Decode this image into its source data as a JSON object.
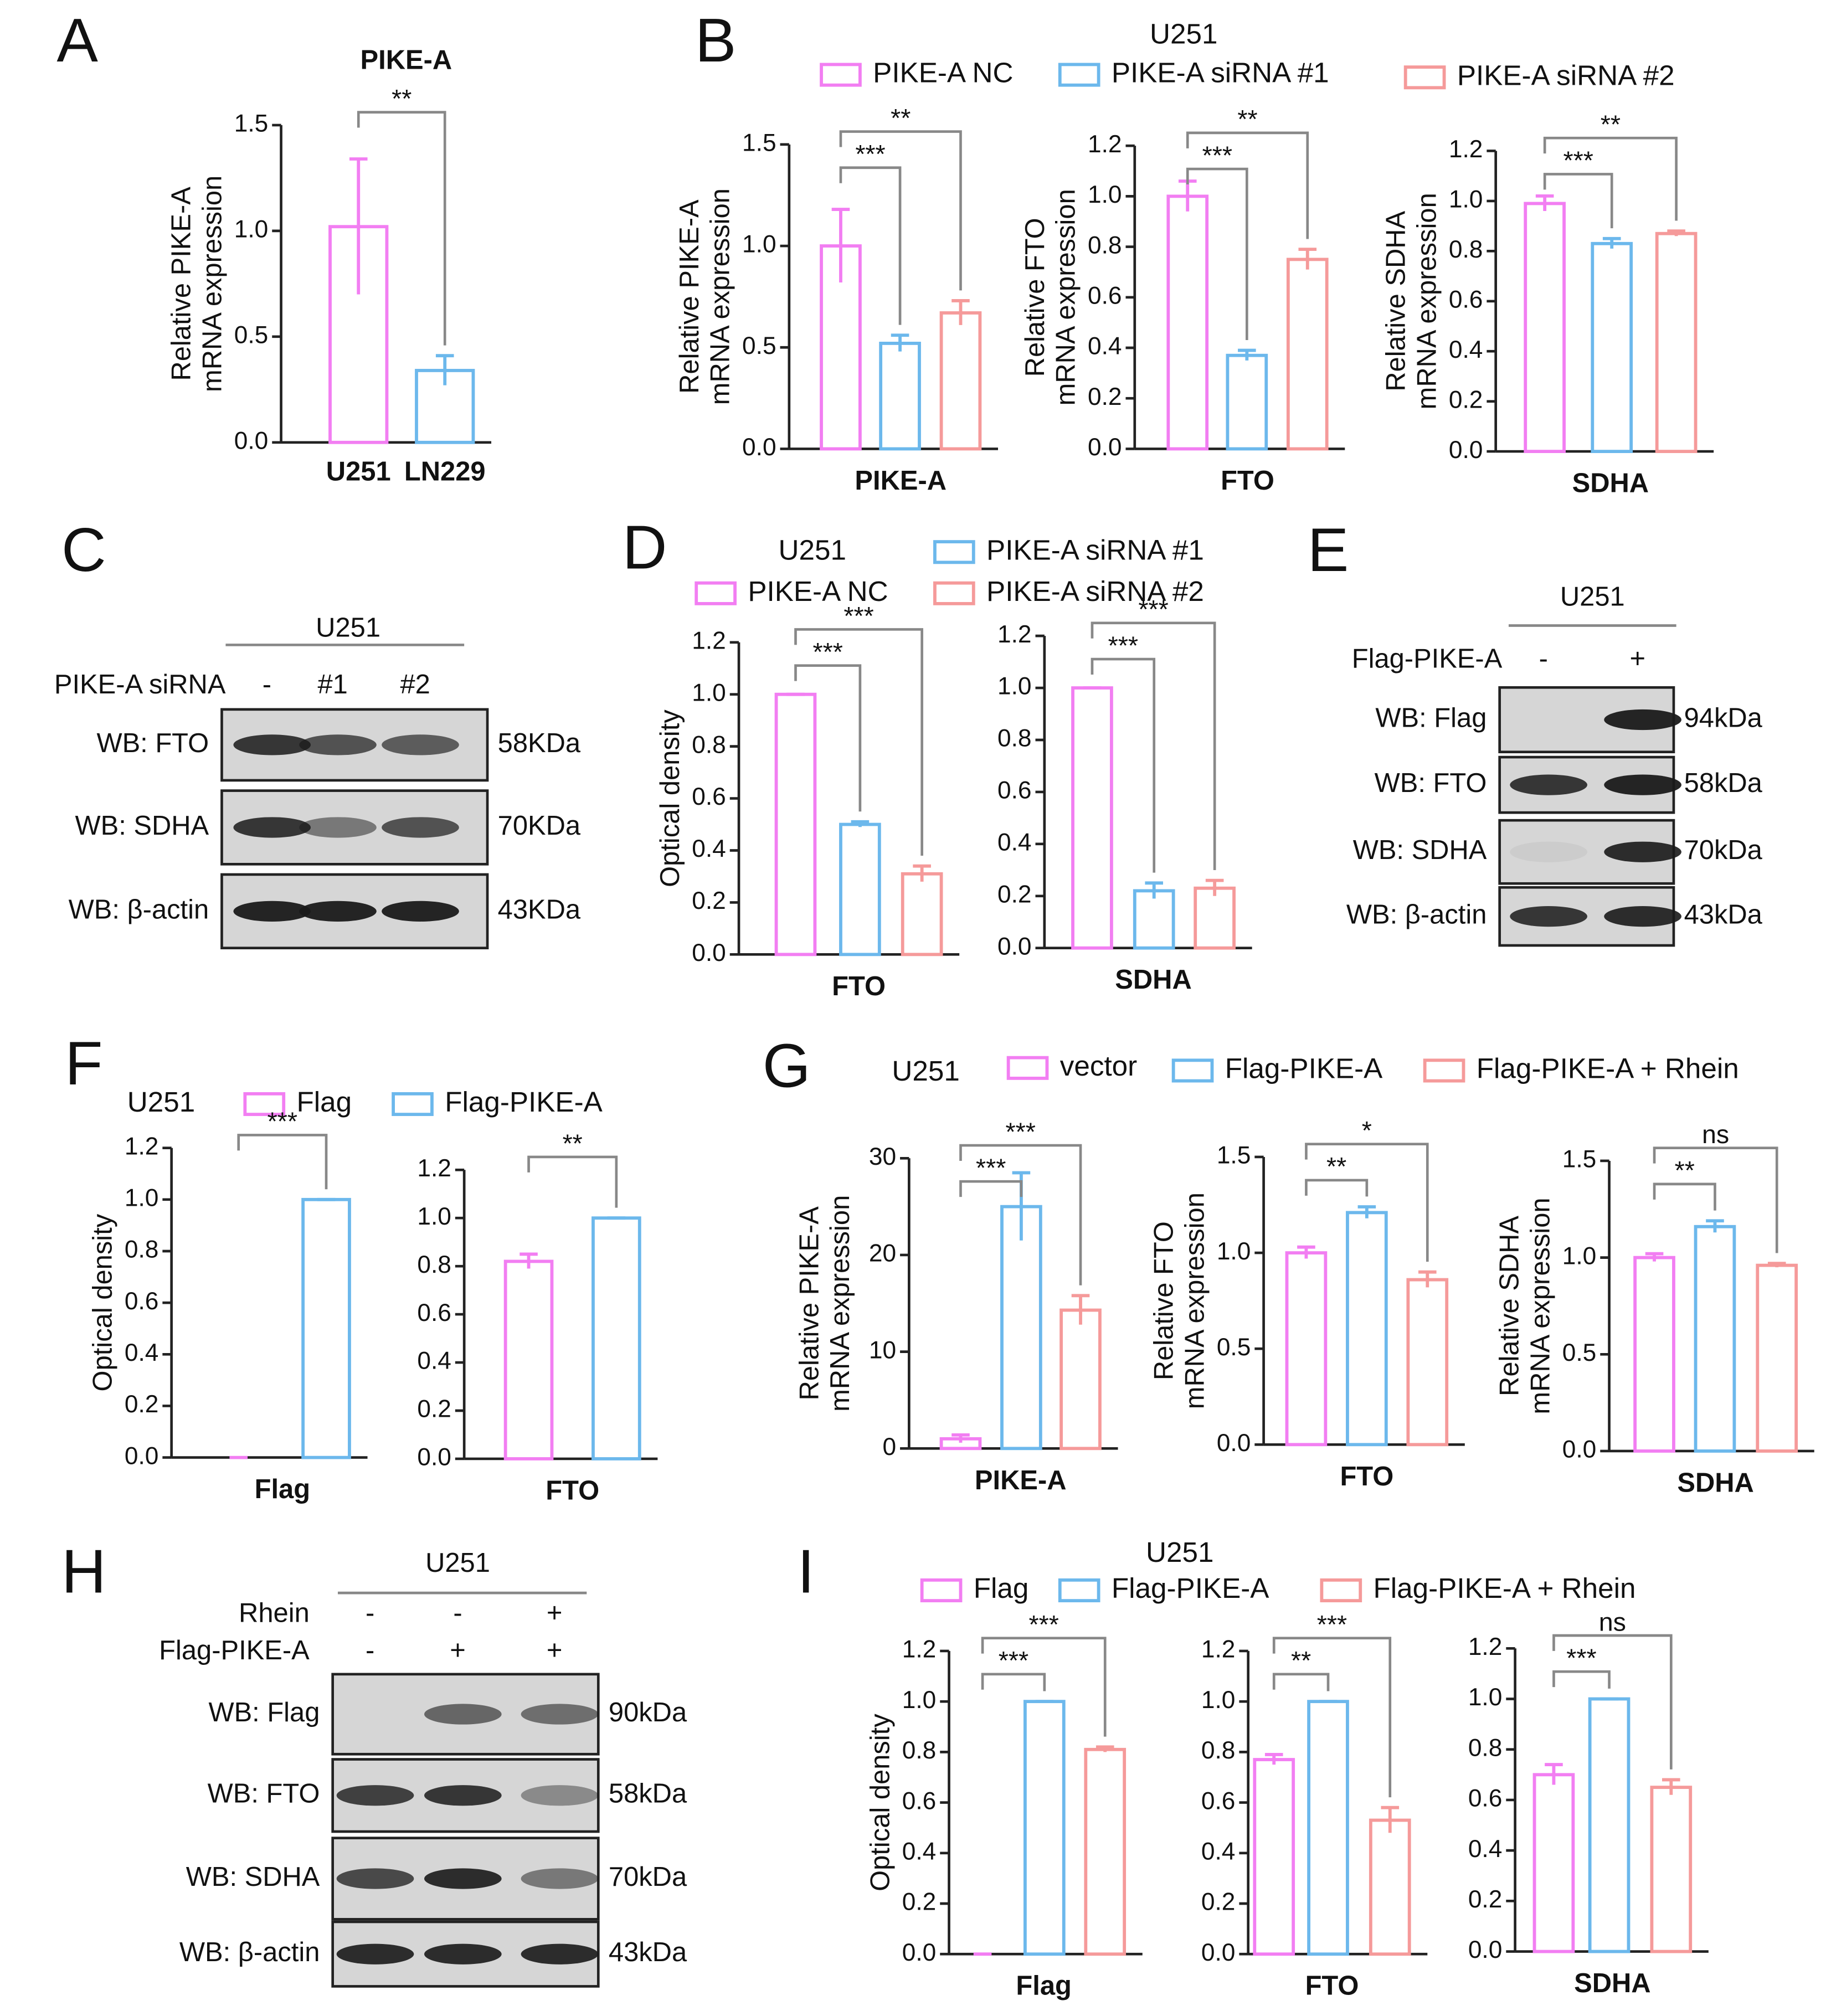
{
  "panel_labels": [
    "A",
    "B",
    "C",
    "D",
    "E",
    "F",
    "G",
    "H",
    "I"
  ],
  "chart_data": [
    {
      "type": "bar",
      "subplots": [
        {
          "title": "PIKE-A",
          "ylabel": [
            "Relative PIKE-A",
            "mRNA expression"
          ],
          "categories": [
            "U251",
            "LN229"
          ],
          "colors": [
            "#f27ef2",
            "#6cb8ec"
          ],
          "values": [
            1.02,
            0.34
          ],
          "errors": [
            0.32,
            0.07
          ],
          "ylim": [
            0,
            1.5
          ],
          "yticks": [
            {
              "value": 0,
              "label": "0.0"
            },
            0.5,
            {
              "value": 1,
              "label": "1.0"
            },
            1.5
          ],
          "annotations": [
            {
              "text": "**",
              "bars": [
                0,
                1
              ]
            }
          ]
        }
      ]
    },
    {
      "type": "bar",
      "title": "U251",
      "series": [
        {
          "name": "PIKE-A NC",
          "color": "#f27ef2"
        },
        {
          "name": "PIKE-A siRNA #1",
          "color": "#6cb8ec"
        },
        {
          "name": "PIKE-A siRNA #2",
          "color": "#f59a9a"
        }
      ],
      "subplots": [
        {
          "ylabel": [
            "Relative PIKE-A",
            "mRNA expression"
          ],
          "xlabel": "PIKE-A",
          "values": [
            1.0,
            0.52,
            0.67
          ],
          "errors": [
            0.18,
            0.04,
            0.06
          ],
          "ylim": [
            0,
            1.5
          ],
          "yticks": [
            {
              "value": 0,
              "label": "0.0"
            },
            0.5,
            {
              "value": 1,
              "label": "1.0"
            },
            1.5
          ],
          "annotations": [
            {
              "text": "***",
              "bars": [
                0,
                1
              ]
            },
            {
              "text": "**",
              "bars": [
                0,
                2
              ]
            }
          ]
        },
        {
          "ylabel": [
            "Relative FTO",
            "mRNA expression"
          ],
          "xlabel": "FTO",
          "values": [
            1.0,
            0.37,
            0.75
          ],
          "errors": [
            0.06,
            0.02,
            0.04
          ],
          "ylim": [
            0,
            1.2
          ],
          "yticks": [
            {
              "value": 0,
              "label": "0.0"
            },
            0.2,
            0.4,
            0.6,
            0.8,
            {
              "value": 1,
              "label": "1.0"
            },
            1.2
          ],
          "annotations": [
            {
              "text": "***",
              "bars": [
                0,
                1
              ]
            },
            {
              "text": "**",
              "bars": [
                0,
                2
              ]
            }
          ]
        },
        {
          "ylabel": [
            "Relative SDHA",
            "mRNA expression"
          ],
          "xlabel": "SDHA",
          "values": [
            0.99,
            0.83,
            0.87
          ],
          "errors": [
            0.03,
            0.02,
            0.01
          ],
          "ylim": [
            0,
            1.2
          ],
          "yticks": [
            {
              "value": 0,
              "label": "0.0"
            },
            0.2,
            0.4,
            0.6,
            0.8,
            {
              "value": 1,
              "label": "1.0"
            },
            1.2
          ],
          "annotations": [
            {
              "text": "***",
              "bars": [
                0,
                1
              ]
            },
            {
              "text": "**",
              "bars": [
                0,
                2
              ]
            }
          ]
        }
      ]
    },
    {
      "type": "bar",
      "title": "U251",
      "series": [
        {
          "name": "PIKE-A NC",
          "color": "#f27ef2"
        },
        {
          "name": "PIKE-A siRNA #1",
          "color": "#6cb8ec"
        },
        {
          "name": "PIKE-A siRNA #2",
          "color": "#f59a9a"
        }
      ],
      "subplots": [
        {
          "ylabel": [
            "Optical density"
          ],
          "xlabel": "FTO",
          "values": [
            1.0,
            0.5,
            0.31
          ],
          "errors": [
            0,
            0.01,
            0.03
          ],
          "ylim": [
            0,
            1.2
          ],
          "yticks": [
            {
              "value": 0,
              "label": "0.0"
            },
            0.2,
            0.4,
            0.6,
            0.8,
            {
              "value": 1,
              "label": "1.0"
            },
            1.2
          ],
          "annotations": [
            {
              "text": "***",
              "bars": [
                0,
                1
              ]
            },
            {
              "text": "***",
              "bars": [
                0,
                2
              ]
            }
          ]
        },
        {
          "xlabel": "SDHA",
          "values": [
            1.0,
            0.22,
            0.23
          ],
          "errors": [
            0,
            0.03,
            0.03
          ],
          "ylim": [
            0,
            1.2
          ],
          "yticks": [
            {
              "value": 0,
              "label": "0.0"
            },
            0.2,
            0.4,
            0.6,
            0.8,
            {
              "value": 1,
              "label": "1.0"
            },
            1.2
          ],
          "annotations": [
            {
              "text": "***",
              "bars": [
                0,
                1
              ]
            },
            {
              "text": "***",
              "bars": [
                0,
                2
              ]
            }
          ]
        }
      ]
    },
    {
      "type": "bar",
      "title": "U251",
      "series": [
        {
          "name": "Flag",
          "color": "#f27ef2"
        },
        {
          "name": "Flag-PIKE-A",
          "color": "#6cb8ec"
        }
      ],
      "subplots": [
        {
          "ylabel": [
            "Optical density"
          ],
          "xlabel": "Flag",
          "values": [
            0,
            1.0
          ],
          "errors": [
            0,
            0
          ],
          "ylim": [
            0,
            1.2
          ],
          "yticks": [
            {
              "value": 0,
              "label": "0.0"
            },
            0.2,
            0.4,
            0.6,
            0.8,
            {
              "value": 1,
              "label": "1.0"
            },
            1.2
          ],
          "annotations": [
            {
              "text": "***",
              "bars": [
                0,
                1
              ]
            }
          ]
        },
        {
          "xlabel": "FTO",
          "values": [
            0.82,
            1.0
          ],
          "errors": [
            0.03,
            0
          ],
          "ylim": [
            0,
            1.2
          ],
          "yticks": [
            {
              "value": 0,
              "label": "0.0"
            },
            0.2,
            0.4,
            0.6,
            0.8,
            {
              "value": 1,
              "label": "1.0"
            },
            1.2
          ],
          "annotations": [
            {
              "text": "**",
              "bars": [
                0,
                1
              ]
            }
          ]
        }
      ]
    },
    {
      "type": "bar",
      "title": "U251",
      "series": [
        {
          "name": "vector",
          "color": "#f27ef2"
        },
        {
          "name": "Flag-PIKE-A",
          "color": "#6cb8ec"
        },
        {
          "name": "Flag-PIKE-A + Rhein",
          "color": "#f59a9a"
        }
      ],
      "subplots": [
        {
          "ylabel": [
            "Relative PIKE-A",
            "mRNA expression"
          ],
          "xlabel": "PIKE-A",
          "values": [
            1.0,
            25,
            14.3
          ],
          "errors": [
            0.4,
            3.5,
            1.5
          ],
          "ylim": [
            0,
            30
          ],
          "yticks": [
            0,
            10,
            20,
            30
          ],
          "annotations": [
            {
              "text": "***",
              "bars": [
                0,
                1
              ]
            },
            {
              "text": "***",
              "bars": [
                0,
                2
              ]
            }
          ]
        },
        {
          "ylabel": [
            "Relative FTO",
            "mRNA expression"
          ],
          "xlabel": "FTO",
          "values": [
            1.0,
            1.21,
            0.86
          ],
          "errors": [
            0.03,
            0.03,
            0.04
          ],
          "ylim": [
            0,
            1.5
          ],
          "yticks": [
            {
              "value": 0,
              "label": "0.0"
            },
            0.5,
            {
              "value": 1,
              "label": "1.0"
            },
            1.5
          ],
          "annotations": [
            {
              "text": "**",
              "bars": [
                0,
                1
              ]
            },
            {
              "text": "*",
              "bars": [
                0,
                2
              ]
            }
          ]
        },
        {
          "ylabel": [
            "Relative SDHA",
            "mRNA expression"
          ],
          "xlabel": "SDHA",
          "values": [
            1.0,
            1.16,
            0.96
          ],
          "errors": [
            0.02,
            0.03,
            0.01
          ],
          "ylim": [
            0,
            1.5
          ],
          "yticks": [
            {
              "value": 0,
              "label": "0.0"
            },
            0.5,
            {
              "value": 1,
              "label": "1.0"
            },
            1.5
          ],
          "annotations": [
            {
              "text": "**",
              "bars": [
                0,
                1
              ]
            },
            {
              "text": "ns",
              "bars": [
                0,
                2
              ]
            }
          ]
        }
      ]
    },
    {
      "type": "bar",
      "title": "U251",
      "series": [
        {
          "name": "Flag",
          "color": "#f27ef2"
        },
        {
          "name": "Flag-PIKE-A",
          "color": "#6cb8ec"
        },
        {
          "name": "Flag-PIKE-A + Rhein",
          "color": "#f59a9a"
        }
      ],
      "subplots": [
        {
          "ylabel": [
            "Optical density"
          ],
          "xlabel": "Flag",
          "values": [
            0,
            1.0,
            0.81
          ],
          "errors": [
            0,
            0,
            0.01
          ],
          "ylim": [
            0,
            1.2
          ],
          "yticks": [
            {
              "value": 0,
              "label": "0.0"
            },
            0.2,
            0.4,
            0.6,
            0.8,
            {
              "value": 1,
              "label": "1.0"
            },
            1.2
          ],
          "annotations": [
            {
              "text": "***",
              "bars": [
                0,
                1
              ]
            },
            {
              "text": "***",
              "bars": [
                0,
                2
              ]
            }
          ]
        },
        {
          "xlabel": "FTO",
          "values": [
            0.77,
            1.0,
            0.53
          ],
          "errors": [
            0.02,
            0,
            0.05
          ],
          "ylim": [
            0,
            1.2
          ],
          "yticks": [
            {
              "value": 0,
              "label": "0.0"
            },
            0.2,
            0.4,
            0.6,
            0.8,
            {
              "value": 1,
              "label": "1.0"
            },
            1.2
          ],
          "annotations": [
            {
              "text": "**",
              "bars": [
                0,
                1
              ]
            },
            {
              "text": "***",
              "bars": [
                0,
                2
              ]
            }
          ]
        },
        {
          "xlabel": "SDHA",
          "values": [
            0.7,
            1.0,
            0.65
          ],
          "errors": [
            0.04,
            0,
            0.03
          ],
          "ylim": [
            0,
            1.2
          ],
          "yticks": [
            {
              "value": 0,
              "label": "0.0"
            },
            0.2,
            0.4,
            0.6,
            0.8,
            {
              "value": 1,
              "label": "1.0"
            },
            1.2
          ],
          "annotations": [
            {
              "text": "***",
              "bars": [
                0,
                1
              ]
            },
            {
              "text": "ns",
              "bars": [
                0,
                2
              ]
            }
          ]
        }
      ]
    }
  ],
  "blots": [
    {
      "title": "U251",
      "conditions": [
        {
          "label": "PIKE-A siRNA",
          "lanes": [
            "-",
            "#1",
            "#2"
          ]
        }
      ],
      "rows": [
        {
          "label": "WB: FTO",
          "size": "58KDa"
        },
        {
          "label": "WB: SDHA",
          "size": "70KDa"
        },
        {
          "label": "WB: β-actin",
          "size": "43KDa"
        }
      ]
    },
    {
      "title": "U251",
      "conditions": [
        {
          "label": "Flag-PIKE-A",
          "lanes": [
            "-",
            "+"
          ]
        }
      ],
      "rows": [
        {
          "label": "WB: Flag",
          "size": "94kDa"
        },
        {
          "label": "WB: FTO",
          "size": "58kDa"
        },
        {
          "label": "WB: SDHA",
          "size": "70kDa"
        },
        {
          "label": "WB: β-actin",
          "size": "43kDa"
        }
      ]
    },
    {
      "title": "U251",
      "conditions": [
        {
          "label": "Rhein",
          "lanes": [
            "-",
            "-",
            "+"
          ]
        },
        {
          "label": "Flag-PIKE-A",
          "lanes": [
            "-",
            "+",
            "+"
          ]
        }
      ],
      "rows": [
        {
          "label": "WB: Flag",
          "size": "90kDa"
        },
        {
          "label": "WB: FTO",
          "size": "58kDa"
        },
        {
          "label": "WB: SDHA",
          "size": "70kDa"
        },
        {
          "label": "WB: β-actin",
          "size": "43kDa"
        }
      ]
    }
  ]
}
